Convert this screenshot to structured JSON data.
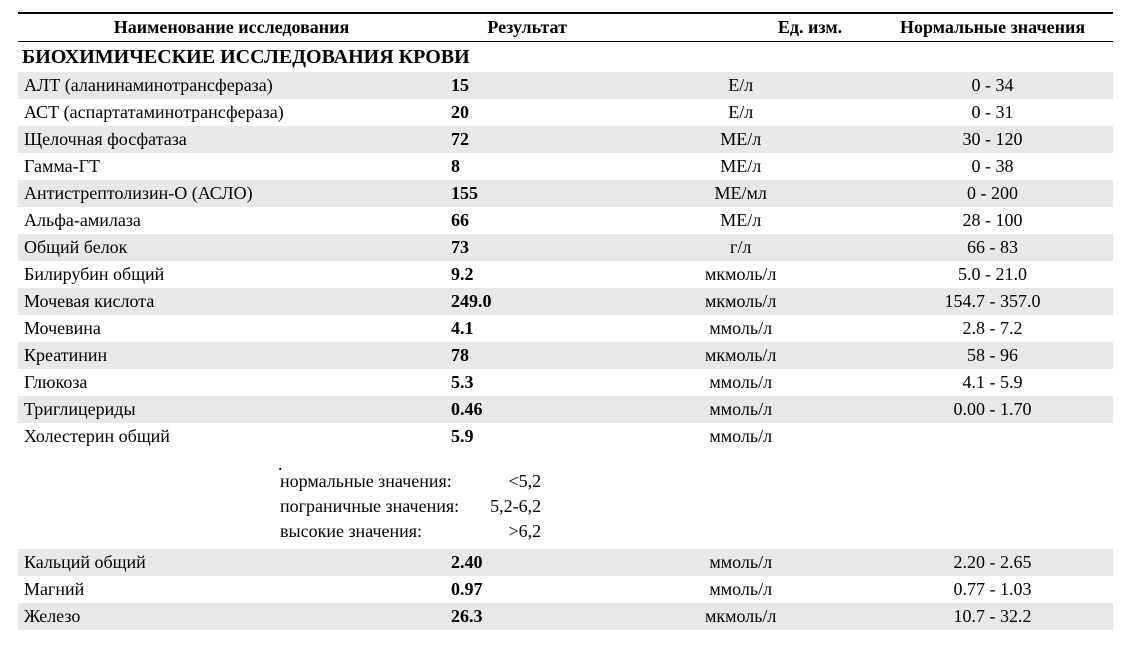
{
  "header": {
    "name": "Наименование исследования",
    "result": "Результат",
    "unit": "Ед. изм.",
    "range": "Нормальные значения"
  },
  "section_title": "БИОХИМИЧЕСКИЕ ИССЛЕДОВАНИЯ КРОВИ",
  "rows": [
    {
      "name": "АЛТ (аланинаминотрансфераза)",
      "result": "15",
      "unit": "Е/л",
      "range": "0 - 34",
      "striped": true
    },
    {
      "name": "АСТ (аспартатаминотрансфераза)",
      "result": "20",
      "unit": "Е/л",
      "range": "0 - 31",
      "striped": false
    },
    {
      "name": "Щелочная фосфатаза",
      "result": "72",
      "unit": "МЕ/л",
      "range": "30 - 120",
      "striped": true
    },
    {
      "name": "Гамма-ГТ",
      "result": "8",
      "unit": "МЕ/л",
      "range": "0 - 38",
      "striped": false
    },
    {
      "name": "Антистрептолизин-О (АСЛО)",
      "result": "155",
      "unit": "МЕ/мл",
      "range": "0 - 200",
      "striped": true
    },
    {
      "name": "Альфа-амилаза",
      "result": "66",
      "unit": "МЕ/л",
      "range": "28 - 100",
      "striped": false
    },
    {
      "name": "Общий белок",
      "result": "73",
      "unit": "г/л",
      "range": "66 - 83",
      "striped": true
    },
    {
      "name": "Билирубин общий",
      "result": "9.2",
      "unit": "мкмоль/л",
      "range": "5.0 - 21.0",
      "striped": false
    },
    {
      "name": "Мочевая кислота",
      "result": "249.0",
      "unit": "мкмоль/л",
      "range": "154.7 - 357.0",
      "striped": true
    },
    {
      "name": "Мочевина",
      "result": "4.1",
      "unit": "ммоль/л",
      "range": "2.8 - 7.2",
      "striped": false
    },
    {
      "name": "Креатинин",
      "result": "78",
      "unit": "мкмоль/л",
      "range": "58 - 96",
      "striped": true
    },
    {
      "name": "Глюкоза",
      "result": "5.3",
      "unit": "ммоль/л",
      "range": "4.1 - 5.9",
      "striped": false
    },
    {
      "name": "Триглицериды",
      "result": "0.46",
      "unit": "ммоль/л",
      "range": "0.00 - 1.70",
      "striped": true
    },
    {
      "name": "Холестерин общий",
      "result": "5.9",
      "unit": "ммоль/л",
      "range": "",
      "striped": false
    }
  ],
  "chol_ref": {
    "normal_label": "нормальные значения:",
    "normal_value": "<5,2",
    "border_label": "пограничные значения:",
    "border_value": "5,2-6,2",
    "high_label": "высокие значения:",
    "high_value": ">6,2"
  },
  "rows2": [
    {
      "name": "Кальций общий",
      "result": "2.40",
      "unit": "ммоль/л",
      "range": "2.20 - 2.65",
      "striped": true
    },
    {
      "name": "Магний",
      "result": "0.97",
      "unit": "ммоль/л",
      "range": "0.77 - 1.03",
      "striped": false
    },
    {
      "name": "Железо",
      "result": "26.3",
      "unit": "мкмоль/л",
      "range": "10.7 - 32.2",
      "striped": true
    }
  ],
  "colors": {
    "stripe": "#e8e8e8",
    "text": "#000000",
    "background": "#ffffff"
  }
}
